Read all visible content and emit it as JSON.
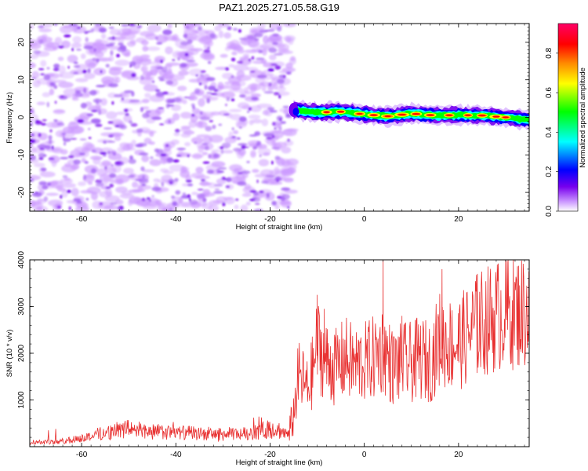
{
  "title": "PAZ1.2025.271.05.58.G19",
  "chart_data": [
    {
      "type": "heatmap",
      "xlabel": "Height of straight line (km)",
      "ylabel": "Frequency (Hz)",
      "xlim": [
        -71,
        35
      ],
      "ylim": [
        -25,
        25
      ],
      "xticks": [
        -60,
        -40,
        -20,
        0,
        20
      ],
      "yticks": [
        -20,
        -10,
        0,
        10,
        20
      ],
      "noise_region_x": [
        -71,
        -16
      ],
      "signal_region_x": [
        -16,
        35
      ],
      "signal_center_hz": [
        {
          "x": -15,
          "f": 2.0
        },
        {
          "x": -10,
          "f": 1.3
        },
        {
          "x": -5,
          "f": 1.5
        },
        {
          "x": 0,
          "f": 0.8
        },
        {
          "x": 5,
          "f": 0.3
        },
        {
          "x": 10,
          "f": 1.0
        },
        {
          "x": 15,
          "f": 0.5
        },
        {
          "x": 20,
          "f": 0.6
        },
        {
          "x": 25,
          "f": 0.5
        },
        {
          "x": 30,
          "f": 0.0
        },
        {
          "x": 35,
          "f": -0.7
        }
      ],
      "colorbar": {
        "label": "Normalized spectral amplitude",
        "range": [
          0,
          0.95
        ],
        "ticks": [
          0.0,
          0.2,
          0.4,
          0.6,
          0.8
        ],
        "tick_labels": [
          "0.0",
          "0.2",
          "0.4",
          "0.6",
          "0.8"
        ],
        "colors": [
          "#ffffff",
          "#cc99ff",
          "#7700ee",
          "#0000ff",
          "#00ffff",
          "#00ff00",
          "#ffff00",
          "#ff8800",
          "#ff0000",
          "#ff0066"
        ]
      }
    },
    {
      "type": "line",
      "xlabel": "Height of straight line (km)",
      "ylabel": "SNR (10 * v/v)",
      "xlim": [
        -71,
        35
      ],
      "ylim": [
        0,
        4000
      ],
      "xticks": [
        -60,
        -40,
        -20,
        0,
        20
      ],
      "yticks": [
        1000,
        2000,
        3000,
        4000
      ],
      "series": [
        {
          "name": "SNR",
          "color": "#e83030",
          "x": [
            -71,
            -65,
            -60,
            -55,
            -50,
            -45,
            -40,
            -35,
            -30,
            -25,
            -22,
            -20,
            -18,
            -16,
            -15,
            -14,
            -13,
            -12,
            -11,
            -10,
            -8,
            -6,
            -4,
            -2,
            0,
            2,
            4,
            6,
            8,
            10,
            12,
            14,
            16,
            18,
            20,
            22,
            24,
            26,
            28,
            30,
            32,
            35
          ],
          "y": [
            100,
            100,
            180,
            300,
            380,
            320,
            300,
            280,
            260,
            280,
            320,
            400,
            350,
            250,
            700,
            1500,
            1400,
            1200,
            1600,
            2200,
            1800,
            1700,
            1900,
            1750,
            1800,
            1900,
            2100,
            1700,
            1800,
            1800,
            1900,
            1800,
            2300,
            2200,
            2200,
            2400,
            2600,
            2700,
            2800,
            2900,
            2900,
            2900
          ]
        }
      ],
      "peaks": [
        {
          "x": -10,
          "y": 3250
        },
        {
          "x": -8.5,
          "y": 2950
        },
        {
          "x": 4,
          "y": 4000
        },
        {
          "x": 8,
          "y": 2800
        },
        {
          "x": 16.5,
          "y": 3800
        },
        {
          "x": 24,
          "y": 3700
        }
      ]
    }
  ]
}
